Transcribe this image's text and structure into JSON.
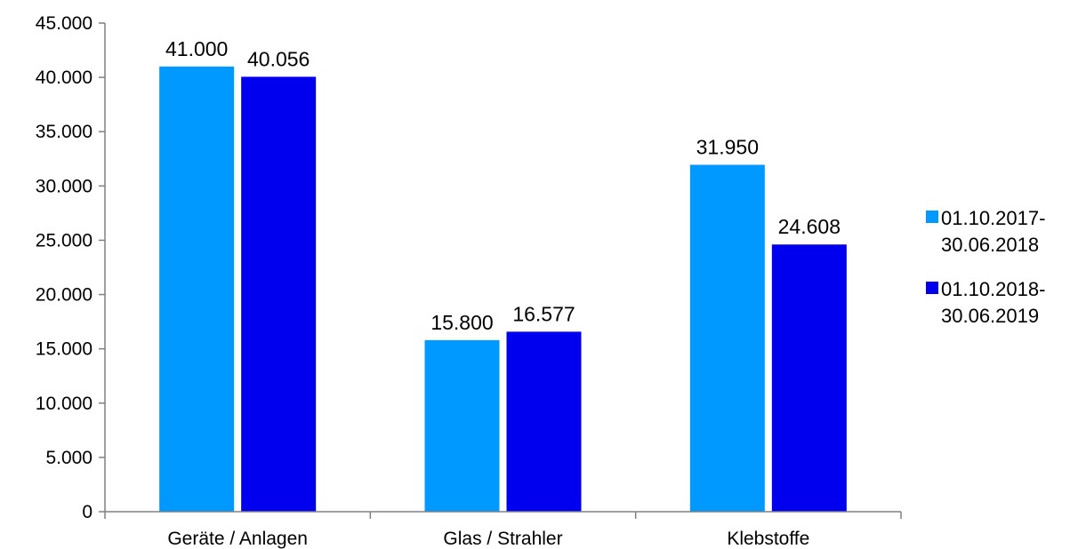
{
  "chart_data": {
    "type": "bar",
    "categories": [
      "Geräte / Anlagen",
      "Glas / Strahler",
      "Klebstoffe"
    ],
    "series": [
      {
        "name": "01.10.2017-30.06.2018",
        "legend_lines": [
          "01.10.2017-",
          "30.06.2018"
        ],
        "values": [
          41000,
          15800,
          31950
        ],
        "value_labels": [
          "41.000",
          "15.800",
          "31.950"
        ],
        "color": "#0099FF"
      },
      {
        "name": "01.10.2018-30.06.2019",
        "legend_lines": [
          "01.10.2018-",
          "30.06.2019"
        ],
        "values": [
          40056,
          16577,
          24608
        ],
        "value_labels": [
          "40.056",
          "16.577",
          "24.608"
        ],
        "color": "#0000EE"
      }
    ],
    "ylim": [
      0,
      45000
    ],
    "yticks": [
      0,
      5000,
      10000,
      15000,
      20000,
      25000,
      30000,
      35000,
      40000,
      45000
    ],
    "ytick_labels": [
      "0",
      "5.000",
      "10.000",
      "15.000",
      "20.000",
      "25.000",
      "30.000",
      "35.000",
      "40.000",
      "45.000"
    ],
    "title": "",
    "xlabel": "",
    "ylabel": "",
    "grid": false,
    "legend": "right"
  }
}
